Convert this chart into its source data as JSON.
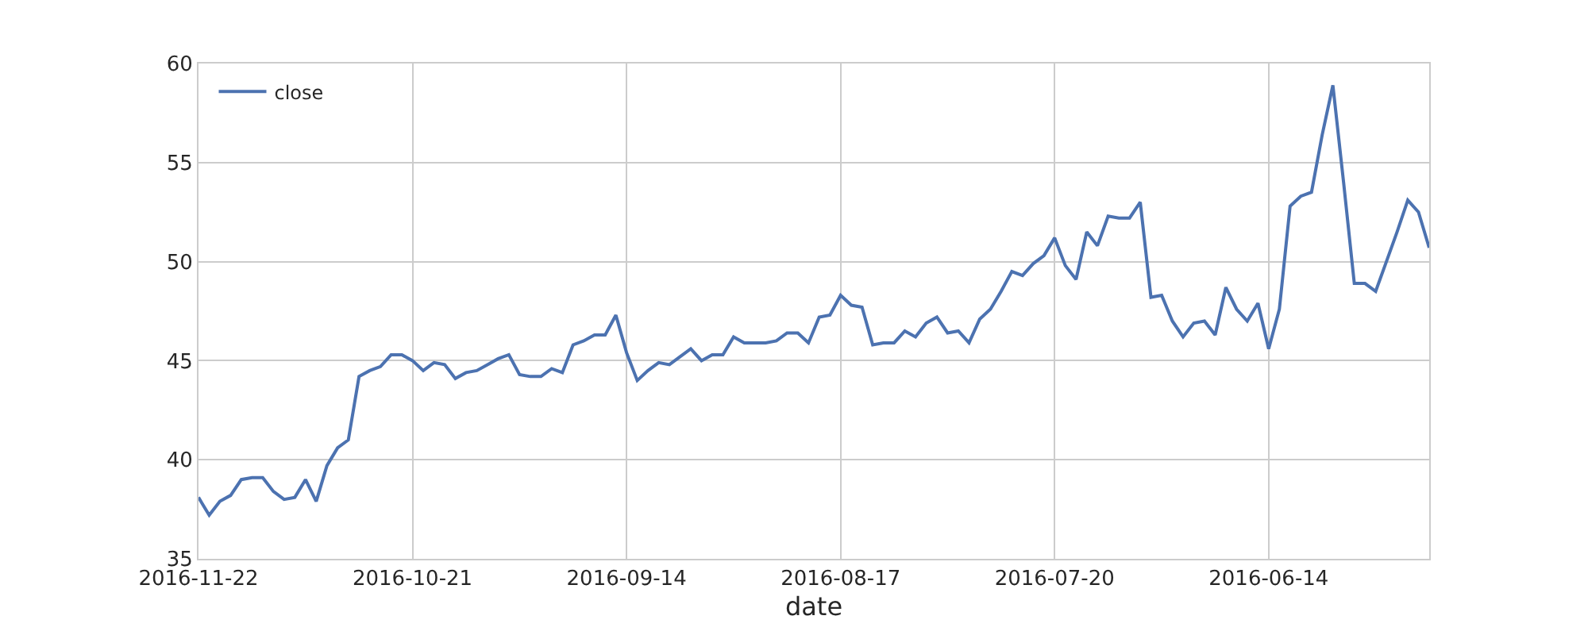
{
  "chart_data": {
    "type": "line",
    "xlabel": "date",
    "categories": [
      "2016-11-22",
      null,
      null,
      null,
      null,
      null,
      null,
      null,
      null,
      null,
      null,
      null,
      null,
      null,
      null,
      null,
      null,
      null,
      null,
      null,
      "2016-10-21",
      null,
      null,
      null,
      null,
      null,
      null,
      null,
      null,
      null,
      null,
      null,
      null,
      null,
      null,
      null,
      null,
      null,
      null,
      null,
      "2016-09-14",
      null,
      null,
      null,
      null,
      null,
      null,
      null,
      null,
      null,
      null,
      null,
      null,
      null,
      null,
      null,
      null,
      null,
      null,
      null,
      "2016-08-17",
      null,
      null,
      null,
      null,
      null,
      null,
      null,
      null,
      null,
      null,
      null,
      null,
      null,
      null,
      null,
      null,
      null,
      null,
      null,
      "2016-07-20",
      null,
      null,
      null,
      null,
      null,
      null,
      null,
      null,
      null,
      null,
      null,
      null,
      null,
      null,
      null,
      null,
      null,
      null,
      null,
      "2016-06-14",
      null,
      null,
      null,
      null,
      null,
      null,
      null,
      null,
      null,
      null,
      null,
      null,
      null,
      null,
      null
    ],
    "series": [
      {
        "name": "close",
        "color": "#4c72b0",
        "values": [
          38.1,
          37.2,
          37.9,
          38.2,
          39.0,
          39.1,
          39.1,
          38.4,
          38.0,
          38.1,
          39.0,
          37.9,
          39.7,
          40.6,
          41.0,
          44.2,
          44.5,
          44.7,
          45.3,
          45.3,
          45.0,
          44.5,
          44.9,
          44.8,
          44.1,
          44.4,
          44.5,
          44.8,
          45.1,
          45.3,
          44.3,
          44.2,
          44.2,
          44.6,
          44.4,
          45.8,
          46.0,
          46.3,
          46.3,
          47.3,
          45.4,
          44.0,
          44.5,
          44.9,
          44.8,
          45.2,
          45.6,
          45.0,
          45.3,
          45.3,
          46.2,
          45.9,
          45.9,
          45.9,
          46.0,
          46.4,
          46.4,
          45.9,
          47.2,
          47.3,
          48.3,
          47.8,
          47.7,
          45.8,
          45.9,
          45.9,
          46.5,
          46.2,
          46.9,
          47.2,
          46.4,
          46.5,
          45.9,
          47.1,
          47.6,
          48.5,
          49.5,
          49.3,
          49.9,
          50.3,
          51.2,
          49.8,
          49.1,
          51.5,
          50.8,
          52.3,
          52.2,
          52.2,
          53.0,
          48.2,
          48.3,
          47.0,
          46.2,
          46.9,
          47.0,
          46.3,
          48.7,
          47.6,
          47.0,
          47.9,
          45.6,
          47.6,
          52.8,
          53.3,
          53.5,
          56.4,
          58.9,
          54.0,
          48.9,
          48.9,
          48.5,
          50.0,
          51.5,
          53.1,
          52.5,
          50.7
        ]
      }
    ],
    "ylim": [
      35,
      60
    ],
    "yticks": [
      35,
      40,
      45,
      50,
      55,
      60
    ],
    "grid": true,
    "legend": "top left",
    "marker": "none",
    "line_style": "solid"
  }
}
